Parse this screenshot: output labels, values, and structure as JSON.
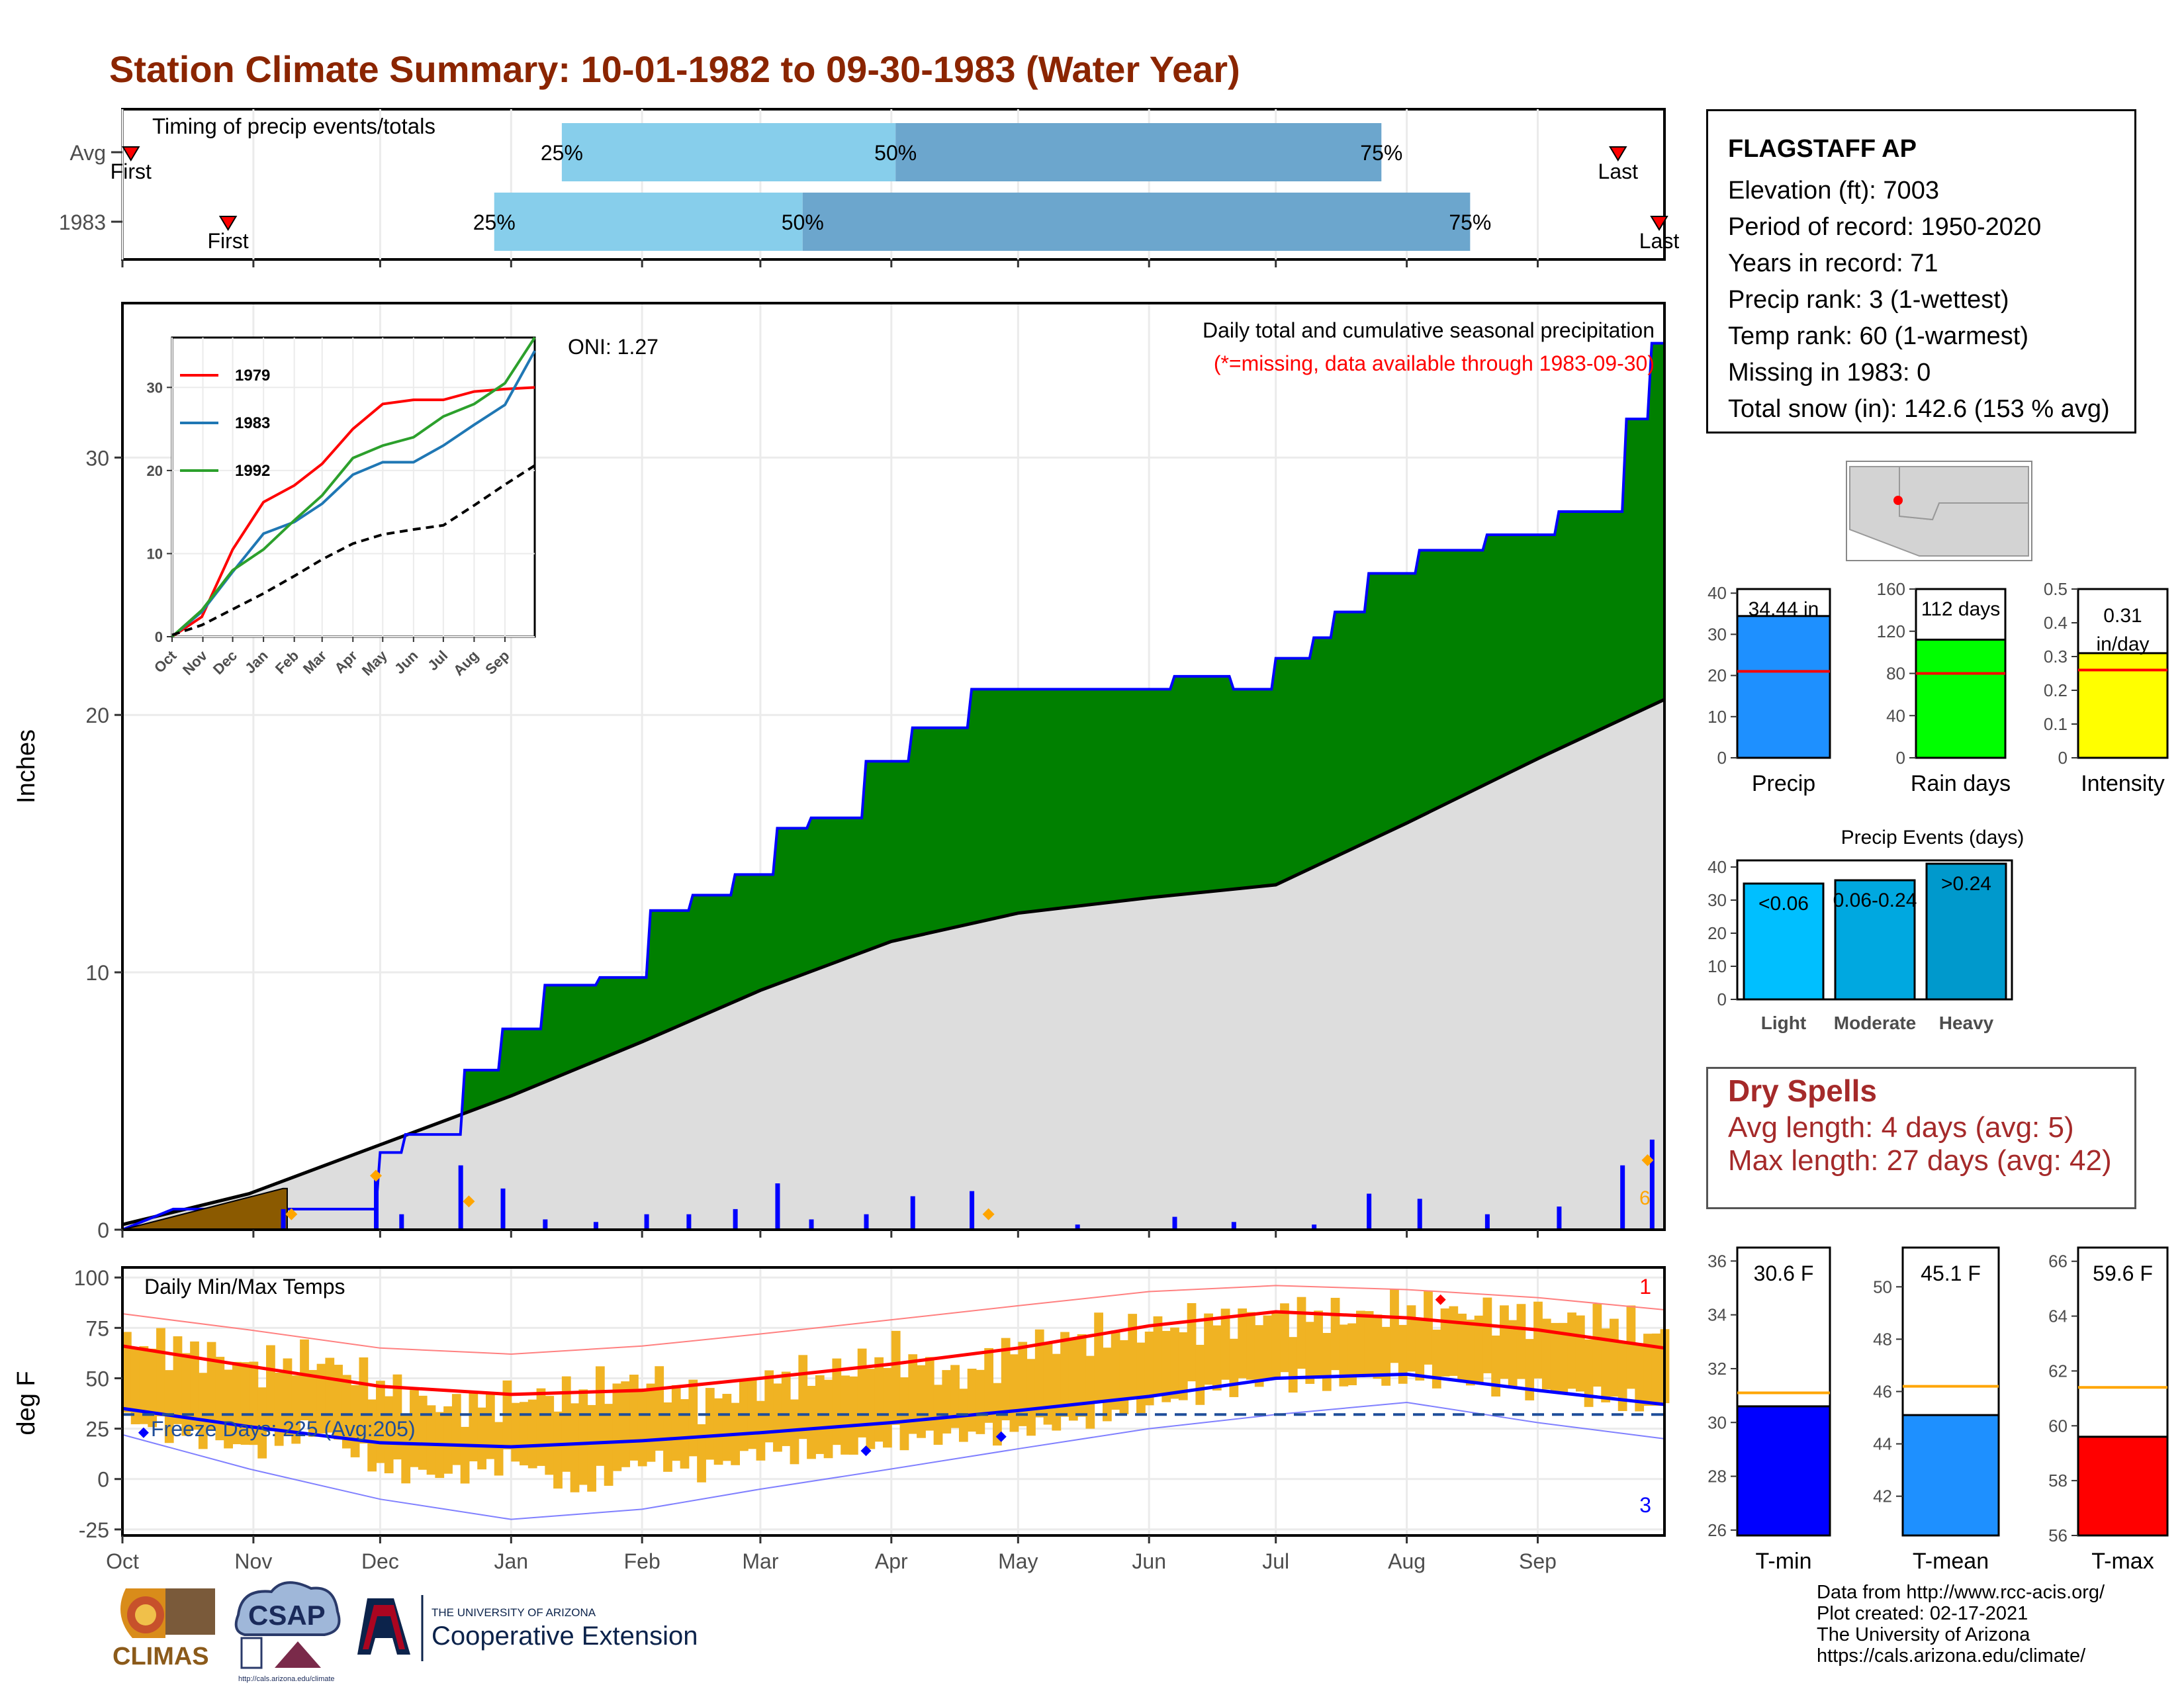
{
  "title": "Station Climate Summary: 10-01-1982 to 09-30-1983 (Water Year)",
  "station": {
    "name": "FLAGSTAFF AP",
    "lines": [
      "Elevation (ft): 7003",
      "Period of record: 1950-2020",
      "Years in record: 71",
      "Precip rank: 3 (1-wettest)",
      "Temp rank: 60 (1-warmest)",
      "Missing in 1983: 0",
      "Total snow (in): 142.6 (153 % avg)"
    ]
  },
  "dry_spells": {
    "title": "Dry Spells",
    "avg": "Avg length: 4 days (avg: 5)",
    "max": "Max length: 27 days (avg: 42)"
  },
  "credits": [
    "Data from http://www.rcc-acis.org/",
    "Plot created: 02-17-2021",
    "The University of Arizona",
    "https://cals.arizona.edu/climate/"
  ],
  "logos": {
    "climas": "CLIMAS",
    "csap": "CSAP",
    "csap_url": "http://cals.arizona.edu/climate",
    "ua_small": "THE UNIVERSITY OF ARIZONA",
    "ua_big": "Cooperative Extension"
  },
  "colors": {
    "title": "#8b2500",
    "cumulative_fill": "#008000",
    "normal_fill": "#dddddd",
    "snow_fill": "#8b5a00",
    "tmax_line": "#ff0000",
    "tmin_line": "#0000ff",
    "daily_range": "#f0b323",
    "timing_early": "#87ceeb",
    "timing_late": "#6ca6cd",
    "dry_text": "#a52a2a"
  },
  "chart_data": [
    {
      "id": "timing",
      "type": "bar",
      "title": "Timing of precip events/totals",
      "rows": [
        {
          "label": "Avg",
          "first": "Oct 3",
          "p25": "Jan 13",
          "p50": "Apr 2",
          "p75": "Jul 26",
          "last": "Sep 20"
        },
        {
          "label": "1983",
          "first": "Oct 26",
          "p25": "Dec 28",
          "p50": "Mar 11",
          "p75": "Aug 16",
          "last": "Sep 30"
        }
      ],
      "marker_labels": {
        "first": "First",
        "last": "Last",
        "p25": "25%",
        "p50": "50%",
        "p75": "75%"
      }
    },
    {
      "id": "cumulative",
      "type": "area",
      "title": "Daily total and cumulative seasonal precipitation",
      "subtitle": "(*=missing, data available through 1983-09-30)",
      "ylabel": "Inches",
      "ylim": [
        0,
        36
      ],
      "yticks": [
        0,
        10,
        20,
        30
      ],
      "xticks": [
        "Oct",
        "Nov",
        "Dec",
        "Jan",
        "Feb",
        "Mar",
        "Apr",
        "May",
        "Jun",
        "Jul",
        "Aug",
        "Sep"
      ],
      "oni": "ONI: 1.27",
      "corner_label": "6",
      "series_1983": {
        "x": [
          0,
          12,
          34,
          44,
          60,
          61,
          66,
          67,
          80,
          81,
          89,
          90,
          99,
          100,
          112,
          113,
          124,
          125,
          134,
          135,
          144,
          145,
          154,
          155,
          162,
          163,
          175,
          176,
          186,
          187,
          200,
          201,
          225,
          226,
          248,
          249,
          262,
          263,
          272,
          273,
          281,
          282,
          286,
          287,
          294,
          295,
          306,
          307,
          322,
          323,
          339,
          340,
          355,
          356,
          361,
          362,
          365
        ],
        "y": [
          0,
          0.8,
          0.8,
          0.8,
          0.8,
          3.0,
          3.0,
          3.7,
          3.7,
          6.2,
          6.2,
          7.8,
          7.8,
          9.5,
          9.5,
          9.8,
          9.8,
          12.4,
          12.4,
          13.0,
          13.0,
          13.8,
          13.8,
          15.6,
          15.6,
          16.0,
          16.0,
          18.2,
          18.2,
          19.5,
          19.5,
          21.0,
          21.0,
          21.0,
          21.0,
          21.5,
          21.5,
          21.0,
          21.0,
          22.2,
          22.2,
          23.0,
          23.0,
          24.0,
          24.0,
          25.5,
          25.5,
          26.4,
          26.4,
          27.0,
          27.0,
          27.9,
          27.9,
          31.5,
          31.5,
          34.44,
          34.44
        ]
      },
      "normal": {
        "x": [
          0,
          30,
          61,
          92,
          123,
          151,
          182,
          212,
          243,
          273,
          304,
          335,
          365
        ],
        "y": [
          0.2,
          1.4,
          3.3,
          5.2,
          7.3,
          9.3,
          11.2,
          12.3,
          12.9,
          13.4,
          15.8,
          18.3,
          20.6
        ]
      },
      "snow": {
        "x": [
          0,
          38,
          39
        ],
        "y": [
          0,
          1.6,
          1.6
        ]
      },
      "daily_bars": {
        "x": [
          38,
          60,
          66,
          80,
          90,
          100,
          112,
          124,
          134,
          145,
          155,
          163,
          176,
          187,
          201,
          226,
          249,
          263,
          282,
          295,
          307,
          323,
          340,
          355,
          362
        ],
        "y": [
          0.8,
          2.2,
          0.6,
          2.5,
          1.6,
          0.4,
          0.3,
          0.6,
          0.6,
          0.8,
          1.8,
          0.4,
          0.6,
          1.3,
          1.5,
          0.2,
          0.5,
          0.3,
          0.2,
          1.4,
          1.2,
          0.6,
          0.9,
          2.5,
          3.5
        ]
      },
      "diamonds": {
        "x": [
          40,
          60,
          82,
          205,
          361
        ],
        "y": [
          0.6,
          2.1,
          1.1,
          0.6,
          2.7
        ]
      }
    },
    {
      "id": "inset",
      "type": "line",
      "ylim": [
        0,
        36
      ],
      "yticks": [
        0,
        10,
        20,
        30
      ],
      "xticks": [
        "Oct",
        "Nov",
        "Dec",
        "Jan",
        "Feb",
        "Mar",
        "Apr",
        "May",
        "Jun",
        "Jul",
        "Aug",
        "Sep"
      ],
      "series": [
        {
          "name": "1979",
          "color": "#ff0000",
          "x": [
            0,
            30,
            61,
            92,
            123,
            151,
            182,
            212,
            243,
            273,
            304,
            335,
            365
          ],
          "y": [
            0,
            2.4,
            10.5,
            16.2,
            18.2,
            20.8,
            25.0,
            28.0,
            28.5,
            28.5,
            29.5,
            29.8,
            30.0
          ]
        },
        {
          "name": "1983",
          "color": "#1f77b4",
          "x": [
            0,
            30,
            61,
            92,
            123,
            151,
            182,
            212,
            243,
            273,
            304,
            335,
            365
          ],
          "y": [
            0,
            3.0,
            7.8,
            12.4,
            13.8,
            16.0,
            19.5,
            21.0,
            21.0,
            23.0,
            25.5,
            27.9,
            34.4
          ]
        },
        {
          "name": "1992",
          "color": "#2ca02c",
          "x": [
            0,
            30,
            61,
            92,
            123,
            151,
            182,
            212,
            243,
            273,
            304,
            335,
            365
          ],
          "y": [
            0,
            3.2,
            8.0,
            10.5,
            14.0,
            17.0,
            21.5,
            23.0,
            24.0,
            26.5,
            28.0,
            30.5,
            36.0
          ]
        },
        {
          "name": "avg",
          "color": "#000000",
          "dashed": true,
          "x": [
            0,
            30,
            61,
            92,
            123,
            151,
            182,
            212,
            243,
            273,
            304,
            335,
            365
          ],
          "y": [
            0.2,
            1.4,
            3.3,
            5.2,
            7.3,
            9.3,
            11.2,
            12.3,
            12.9,
            13.4,
            15.8,
            18.3,
            20.6
          ]
        }
      ]
    },
    {
      "id": "temps",
      "type": "line",
      "title": "Daily Min/Max Temps",
      "ylabel": "deg F",
      "ylim": [
        -28,
        105
      ],
      "yticks": [
        -25,
        0,
        25,
        50,
        75,
        100
      ],
      "xticks": [
        "Oct",
        "Nov",
        "Dec",
        "Jan",
        "Feb",
        "Mar",
        "Apr",
        "May",
        "Jun",
        "Jul",
        "Aug",
        "Sep"
      ],
      "freeze_label": "Freeze Days: 225 (Avg:205)",
      "freeze_line": 32,
      "record_high_count": "1",
      "record_low_count": "3",
      "avg_max": {
        "x": [
          0,
          30,
          61,
          92,
          123,
          151,
          182,
          212,
          243,
          273,
          304,
          335,
          365
        ],
        "y": [
          66,
          56,
          46,
          42,
          44,
          50,
          57,
          65,
          76,
          83,
          80,
          74,
          65
        ]
      },
      "avg_min": {
        "x": [
          0,
          30,
          61,
          92,
          123,
          151,
          182,
          212,
          243,
          273,
          304,
          335,
          365
        ],
        "y": [
          35,
          26,
          18,
          16,
          19,
          23,
          28,
          34,
          41,
          50,
          52,
          44,
          37
        ]
      },
      "daily_max": {
        "x": [
          0,
          15,
          30,
          45,
          61,
          76,
          92,
          107,
          123,
          137,
          151,
          166,
          182,
          197,
          212,
          227,
          243,
          258,
          273,
          288,
          304,
          319,
          335,
          350,
          365
        ],
        "y": [
          68,
          64,
          55,
          60,
          45,
          35,
          40,
          42,
          50,
          38,
          48,
          52,
          62,
          50,
          66,
          70,
          75,
          78,
          82,
          80,
          84,
          82,
          80,
          78,
          70
        ]
      },
      "daily_min": {
        "x": [
          0,
          15,
          30,
          45,
          61,
          76,
          92,
          107,
          123,
          137,
          151,
          166,
          182,
          197,
          212,
          227,
          243,
          258,
          273,
          288,
          304,
          319,
          335,
          350,
          365
        ],
        "y": [
          30,
          22,
          15,
          25,
          5,
          2,
          10,
          -5,
          10,
          5,
          15,
          12,
          20,
          22,
          25,
          30,
          38,
          45,
          50,
          48,
          52,
          48,
          45,
          40,
          35
        ]
      },
      "rec_max": {
        "x": [
          0,
          30,
          61,
          92,
          123,
          151,
          182,
          212,
          243,
          273,
          304,
          335,
          365
        ],
        "y": [
          82,
          74,
          65,
          62,
          66,
          72,
          79,
          86,
          93,
          96,
          94,
          90,
          84
        ]
      },
      "rec_min": {
        "x": [
          0,
          30,
          61,
          92,
          123,
          151,
          182,
          212,
          243,
          273,
          304,
          335,
          365
        ],
        "y": [
          22,
          5,
          -10,
          -20,
          -15,
          -5,
          5,
          15,
          25,
          32,
          38,
          28,
          20
        ]
      },
      "marks_low": {
        "x": [
          5,
          176,
          208
        ],
        "y": [
          23,
          14,
          21
        ]
      },
      "marks_high": {
        "x": [
          312
        ],
        "y": [
          89
        ]
      }
    },
    {
      "id": "small-bars-precip",
      "type": "bar",
      "items": [
        {
          "label": "Precip",
          "value": 34.44,
          "text": "34.44 in",
          "avg": 21,
          "ylim": [
            0,
            41
          ],
          "yticks": [
            0,
            10,
            20,
            30,
            40
          ],
          "color": "#1e90ff"
        },
        {
          "label": "Rain days",
          "value": 112,
          "text": "112 days",
          "avg": 80,
          "ylim": [
            0,
            160
          ],
          "yticks": [
            0,
            40,
            80,
            120,
            160
          ],
          "color": "#00ff00"
        },
        {
          "label": "Intensity",
          "value": 0.31,
          "text": "0.31 in/day",
          "avg": 0.26,
          "ylim": [
            0,
            0.5
          ],
          "yticks": [
            0.0,
            0.1,
            0.2,
            0.3,
            0.4,
            0.5
          ],
          "color": "#ffff00"
        }
      ]
    },
    {
      "id": "precip-events",
      "type": "bar",
      "title": "Precip Events (days)",
      "categories": [
        "Light",
        "Moderate",
        "Heavy"
      ],
      "bar_labels": [
        "<0.06",
        "0.06-0.24",
        ">0.24"
      ],
      "values": [
        35,
        36,
        41
      ],
      "ylim": [
        0,
        42
      ],
      "yticks": [
        0,
        10,
        20,
        30,
        40
      ]
    },
    {
      "id": "small-bars-temp",
      "type": "bar",
      "items": [
        {
          "label": "T-min",
          "value": 30.6,
          "text": "30.6 F",
          "avg": 31.1,
          "ylim": [
            25.8,
            36.5
          ],
          "yticks": [
            26,
            28,
            30,
            32,
            34,
            36
          ],
          "color": "#0000ff"
        },
        {
          "label": "T-mean",
          "value": 45.1,
          "text": "45.1 F",
          "avg": 46.2,
          "ylim": [
            40.5,
            51.5
          ],
          "yticks": [
            42,
            44,
            46,
            48,
            50
          ],
          "color": "#1e90ff"
        },
        {
          "label": "T-max",
          "value": 59.6,
          "text": "59.6 F",
          "avg": 61.4,
          "ylim": [
            56,
            66.5
          ],
          "yticks": [
            56,
            58,
            60,
            62,
            64,
            66
          ],
          "color": "#ff0000"
        }
      ]
    }
  ]
}
